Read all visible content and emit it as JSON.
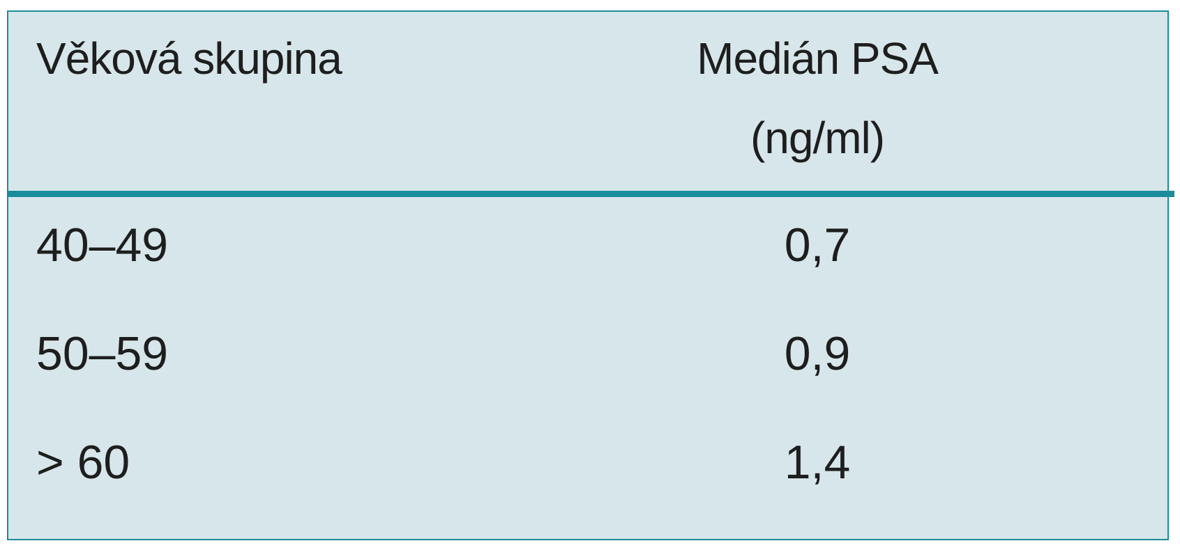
{
  "table": {
    "header": [
      "Věková skupina",
      [
        "Medián PSA",
        "(ng/ml)"
      ]
    ],
    "rows": [
      [
        "40–49",
        "0,7"
      ],
      [
        "50–59",
        "0,9"
      ],
      [
        "> 60",
        "1,4"
      ]
    ]
  }
}
